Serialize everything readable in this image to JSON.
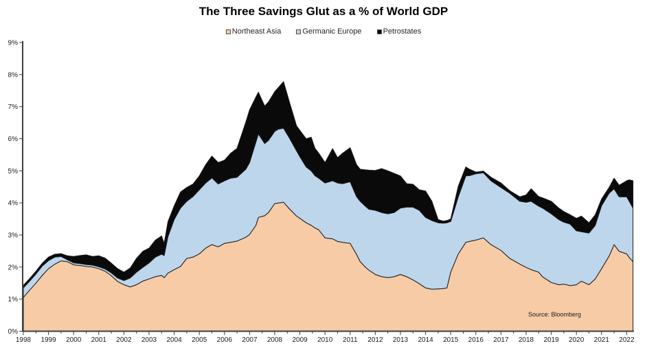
{
  "chart_data": {
    "type": "area",
    "stacked": true,
    "title": "The Three Savings Glut as a % of World GDP",
    "source": "Source: Bloomberg",
    "xlabel": "",
    "ylabel": "",
    "xlim": [
      1998,
      2022.25
    ],
    "ylim": [
      0,
      9
    ],
    "grid": false,
    "legend_position": "top",
    "axis_color": "#3d3d3d",
    "outline_color": "#1a1a1a",
    "y_ticks": [
      "0%",
      "1%",
      "2%",
      "3%",
      "4%",
      "5%",
      "6%",
      "7%",
      "8%",
      "9%"
    ],
    "x_ticks": [
      1998,
      1999,
      2000,
      2001,
      2002,
      2003,
      2004,
      2005,
      2006,
      2007,
      2008,
      2009,
      2010,
      2011,
      2012,
      2013,
      2014,
      2015,
      2016,
      2017,
      2018,
      2019,
      2020,
      2021,
      2022
    ],
    "x": [
      1998,
      1998.25,
      1998.5,
      1998.75,
      1999,
      1999.25,
      1999.5,
      1999.75,
      2000,
      2000.25,
      2000.5,
      2000.75,
      2001,
      2001.25,
      2001.5,
      2001.75,
      2002,
      2002.25,
      2002.5,
      2002.75,
      2003,
      2003.25,
      2003.5,
      2003.6,
      2003.75,
      2004,
      2004.25,
      2004.5,
      2004.75,
      2005,
      2005.25,
      2005.5,
      2005.75,
      2006,
      2006.25,
      2006.5,
      2006.85,
      2007,
      2007.25,
      2007.35,
      2007.6,
      2007.75,
      2008,
      2008.15,
      2008.35,
      2008.6,
      2008.87,
      2009,
      2009.25,
      2009.45,
      2009.6,
      2009.75,
      2010,
      2010.3,
      2010.5,
      2010.7,
      2011,
      2011.25,
      2011.4,
      2011.6,
      2011.75,
      2012,
      2012.25,
      2012.5,
      2012.75,
      2013,
      2013.25,
      2013.5,
      2013.75,
      2014,
      2014.25,
      2014.5,
      2014.7,
      2014.85,
      2015,
      2015.3,
      2015.6,
      2015.75,
      2016,
      2016.3,
      2016.6,
      2017,
      2017.35,
      2017.75,
      2018,
      2018.2,
      2018.5,
      2018.65,
      2019,
      2019.3,
      2019.5,
      2019.75,
      2020,
      2020.2,
      2020.5,
      2020.75,
      2021,
      2021.3,
      2021.5,
      2021.7,
      2022,
      2022.1,
      2022.25
    ],
    "series": [
      {
        "name": "Northeast Asia",
        "color": "#F6CBA6",
        "values": [
          1.05,
          1.28,
          1.5,
          1.74,
          1.95,
          2.09,
          2.19,
          2.17,
          2.07,
          2.05,
          2.02,
          2.0,
          1.95,
          1.87,
          1.73,
          1.55,
          1.45,
          1.38,
          1.45,
          1.56,
          1.63,
          1.7,
          1.74,
          1.67,
          1.81,
          1.92,
          2.02,
          2.27,
          2.31,
          2.41,
          2.59,
          2.7,
          2.63,
          2.74,
          2.77,
          2.81,
          2.93,
          3.02,
          3.3,
          3.55,
          3.6,
          3.7,
          3.98,
          4.0,
          4.02,
          3.8,
          3.59,
          3.52,
          3.38,
          3.3,
          3.22,
          3.16,
          2.91,
          2.88,
          2.8,
          2.77,
          2.74,
          2.4,
          2.17,
          2.0,
          1.9,
          1.77,
          1.7,
          1.67,
          1.7,
          1.77,
          1.7,
          1.6,
          1.48,
          1.35,
          1.31,
          1.32,
          1.33,
          1.35,
          1.84,
          2.41,
          2.77,
          2.8,
          2.84,
          2.91,
          2.7,
          2.52,
          2.27,
          2.09,
          1.99,
          1.92,
          1.84,
          1.7,
          1.52,
          1.45,
          1.47,
          1.42,
          1.45,
          1.56,
          1.45,
          1.63,
          1.95,
          2.34,
          2.7,
          2.49,
          2.41,
          2.3,
          2.17
        ]
      },
      {
        "name": "Germanic Europe",
        "color": "#BDD6EC",
        "values": [
          0.3,
          0.28,
          0.28,
          0.29,
          0.25,
          0.22,
          0.14,
          0.06,
          0.06,
          0.06,
          0.06,
          0.06,
          0.06,
          0.07,
          0.09,
          0.11,
          0.13,
          0.28,
          0.39,
          0.43,
          0.5,
          0.61,
          0.66,
          0.69,
          1.14,
          1.56,
          1.82,
          1.78,
          1.89,
          2.0,
          2.03,
          2.08,
          1.96,
          1.95,
          2.0,
          1.99,
          2.12,
          2.24,
          2.6,
          2.6,
          2.25,
          2.25,
          2.25,
          2.3,
          2.31,
          2.2,
          2.03,
          1.92,
          1.74,
          1.7,
          1.63,
          1.61,
          1.71,
          1.81,
          1.82,
          1.83,
          1.92,
          1.8,
          1.88,
          1.9,
          1.9,
          2.0,
          2.0,
          1.99,
          2.0,
          2.07,
          2.17,
          2.27,
          2.29,
          2.2,
          2.14,
          2.06,
          2.04,
          2.03,
          1.58,
          1.78,
          2.07,
          2.05,
          2.07,
          2.03,
          1.99,
          1.96,
          2.03,
          1.96,
          2.03,
          2.13,
          2.06,
          2.14,
          2.14,
          2.03,
          1.93,
          1.92,
          1.68,
          1.54,
          1.61,
          1.67,
          1.96,
          1.96,
          1.74,
          1.7,
          1.78,
          1.75,
          1.67
        ]
      },
      {
        "name": "Petrostates",
        "color": "#0A0A0A",
        "values": [
          0.08,
          0.08,
          0.09,
          0.09,
          0.11,
          0.09,
          0.09,
          0.12,
          0.2,
          0.25,
          0.3,
          0.27,
          0.34,
          0.34,
          0.3,
          0.29,
          0.26,
          0.31,
          0.43,
          0.5,
          0.46,
          0.53,
          0.57,
          0.38,
          0.46,
          0.43,
          0.5,
          0.43,
          0.39,
          0.43,
          0.57,
          0.68,
          0.67,
          0.64,
          0.78,
          0.9,
          1.47,
          1.64,
          1.4,
          1.3,
          1.17,
          1.2,
          1.24,
          1.3,
          1.45,
          1.1,
          0.78,
          0.82,
          0.88,
          1.05,
          0.85,
          0.78,
          0.64,
          1.0,
          0.79,
          0.95,
          1.06,
          1.0,
          1.0,
          1.13,
          1.22,
          1.24,
          1.37,
          1.34,
          1.22,
          1.0,
          0.73,
          0.71,
          0.64,
          0.82,
          0.6,
          0.1,
          0.06,
          0.07,
          0.08,
          0.33,
          0.28,
          0.2,
          0.05,
          0.05,
          0.11,
          0.14,
          0.08,
          0.14,
          0.23,
          0.39,
          0.3,
          0.32,
          0.39,
          0.36,
          0.33,
          0.29,
          0.39,
          0.49,
          0.32,
          0.33,
          0.21,
          0.18,
          0.33,
          0.36,
          0.5,
          0.67,
          0.85
        ]
      }
    ]
  }
}
